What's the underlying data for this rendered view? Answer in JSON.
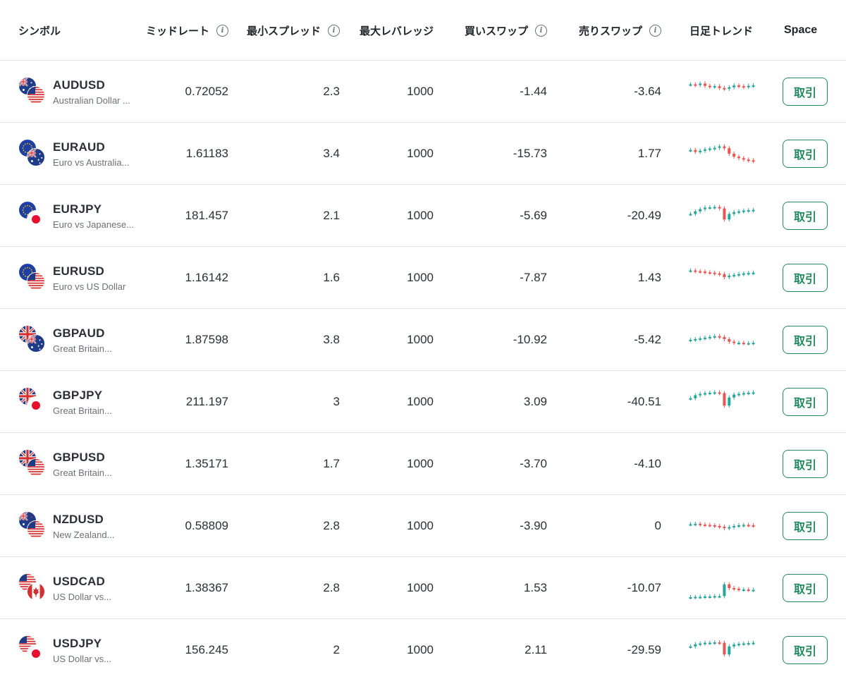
{
  "header": {
    "symbol": "シンボル",
    "mid_rate": "ミッドレート",
    "min_spread": "最小スプレッド",
    "max_leverage": "最大レバレッジ",
    "buy_swap": "買いスワップ",
    "sell_swap": "売りスワップ",
    "daily_trend": "日足トレンド",
    "space": "Space",
    "info_icon": "i"
  },
  "trade_label": "取引",
  "colors": {
    "up": "#26a69a",
    "down": "#ef5350",
    "accent": "#1f8a5b"
  },
  "rows": [
    {
      "code": "AUDUSD",
      "name": "Australian Dollar ...",
      "mid": "0.72052",
      "spread": "2.3",
      "leverage": "1000",
      "buy_swap": "-1.44",
      "sell_swap": "-3.64",
      "base_flag": "au-flag-icon",
      "quote_flag": "us-flag-icon",
      "trend": [
        0.3,
        0.32,
        0.28,
        0.34,
        0.36,
        0.35,
        0.4,
        0.42,
        0.38,
        0.33,
        0.35,
        0.37,
        0.34,
        0.33
      ]
    },
    {
      "code": "EURAUD",
      "name": "Euro vs Australia...",
      "mid": "1.61183",
      "spread": "3.4",
      "leverage": "1000",
      "buy_swap": "-15.73",
      "sell_swap": "1.77",
      "base_flag": "eu-flag-icon",
      "quote_flag": "au-flag-icon",
      "trend": [
        0.4,
        0.45,
        0.42,
        0.38,
        0.36,
        0.34,
        0.3,
        0.35,
        0.5,
        0.58,
        0.62,
        0.66,
        0.68,
        0.7
      ]
    },
    {
      "code": "EURJPY",
      "name": "Euro vs Japanese...",
      "mid": "181.457",
      "spread": "2.1",
      "leverage": "1000",
      "buy_swap": "-5.69",
      "sell_swap": "-20.49",
      "base_flag": "eu-flag-icon",
      "quote_flag": "jp-flag-icon",
      "trend": [
        0.45,
        0.38,
        0.32,
        0.28,
        0.27,
        0.26,
        0.3,
        0.6,
        0.45,
        0.4,
        0.38,
        0.36,
        0.35,
        0.34
      ]
    },
    {
      "code": "EURUSD",
      "name": "Euro vs US Dollar",
      "mid": "1.16142",
      "spread": "1.6",
      "leverage": "1000",
      "buy_swap": "-7.87",
      "sell_swap": "1.43",
      "base_flag": "eu-flag-icon",
      "quote_flag": "us-flag-icon",
      "trend": [
        0.3,
        0.32,
        0.33,
        0.35,
        0.36,
        0.38,
        0.4,
        0.48,
        0.44,
        0.42,
        0.4,
        0.38,
        0.37,
        0.36
      ]
    },
    {
      "code": "GBPAUD",
      "name": "Great Britain...",
      "mid": "1.87598",
      "spread": "3.8",
      "leverage": "1000",
      "buy_swap": "-10.92",
      "sell_swap": "-5.42",
      "base_flag": "gb-flag-icon",
      "quote_flag": "au-flag-icon",
      "trend": [
        0.5,
        0.48,
        0.46,
        0.44,
        0.42,
        0.4,
        0.42,
        0.48,
        0.55,
        0.58,
        0.58,
        0.59,
        0.59,
        0.58
      ]
    },
    {
      "code": "GBPJPY",
      "name": "Great Britain...",
      "mid": "211.197",
      "spread": "3",
      "leverage": "1000",
      "buy_swap": "3.09",
      "sell_swap": "-40.51",
      "base_flag": "gb-flag-icon",
      "quote_flag": "jp-flag-icon",
      "trend": [
        0.4,
        0.32,
        0.28,
        0.26,
        0.25,
        0.24,
        0.26,
        0.6,
        0.38,
        0.3,
        0.28,
        0.26,
        0.25,
        0.24
      ]
    },
    {
      "code": "GBPUSD",
      "name": "Great Britain...",
      "mid": "1.35171",
      "spread": "1.7",
      "leverage": "1000",
      "buy_swap": "-3.70",
      "sell_swap": "-4.10",
      "base_flag": "gb-flag-icon",
      "quote_flag": "us-flag-icon",
      "trend": []
    },
    {
      "code": "NZDUSD",
      "name": "New Zealand...",
      "mid": "0.58809",
      "spread": "2.8",
      "leverage": "1000",
      "buy_swap": "-3.90",
      "sell_swap": "0",
      "base_flag": "nz-flag-icon",
      "quote_flag": "us-flag-icon",
      "trend": [
        0.45,
        0.44,
        0.46,
        0.47,
        0.48,
        0.5,
        0.52,
        0.56,
        0.53,
        0.5,
        0.48,
        0.47,
        0.48,
        0.49
      ]
    },
    {
      "code": "USDCAD",
      "name": "US Dollar vs...",
      "mid": "1.38367",
      "spread": "2.8",
      "leverage": "1000",
      "buy_swap": "1.53",
      "sell_swap": "-10.07",
      "base_flag": "us-flag-icon",
      "quote_flag": "ca-flag-icon",
      "trend": [
        0.75,
        0.74,
        0.74,
        0.73,
        0.73,
        0.72,
        0.72,
        0.4,
        0.5,
        0.52,
        0.54,
        0.54,
        0.55,
        0.55
      ]
    },
    {
      "code": "USDJPY",
      "name": "US Dollar vs...",
      "mid": "156.245",
      "spread": "2",
      "leverage": "1000",
      "buy_swap": "2.11",
      "sell_swap": "-29.59",
      "base_flag": "us-flag-icon",
      "quote_flag": "jp-flag-icon",
      "trend": [
        0.4,
        0.34,
        0.32,
        0.3,
        0.3,
        0.29,
        0.3,
        0.62,
        0.4,
        0.35,
        0.33,
        0.32,
        0.31,
        0.3
      ]
    }
  ]
}
